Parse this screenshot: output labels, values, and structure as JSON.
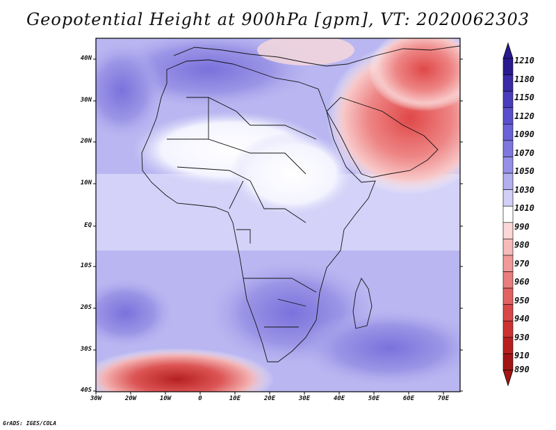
{
  "title": "Geopotential Height at 900hPa [gpm], VT: 2020062303",
  "credit": "GrADS: IGES/COLA",
  "lat_labels": [
    "40N",
    "30N",
    "20N",
    "10N",
    "EQ",
    "10S",
    "20S",
    "30S",
    "40S"
  ],
  "lon_labels": [
    "30W",
    "20W",
    "10W",
    "0",
    "10E",
    "20E",
    "30E",
    "40E",
    "50E",
    "60E",
    "70E"
  ],
  "colorbar": {
    "labels": [
      "1210",
      "1180",
      "1150",
      "1120",
      "1090",
      "1070",
      "1050",
      "1030",
      "1010",
      "990",
      "980",
      "970",
      "960",
      "950",
      "940",
      "930",
      "910",
      "890"
    ],
    "colors": [
      "#2a1a8f",
      "#3a2aa6",
      "#4a3dbb",
      "#5a4fcc",
      "#6a62d8",
      "#7e77e0",
      "#9690e8",
      "#b3b0f0",
      "#d2d0f8",
      "#ffffff",
      "#fbd8d8",
      "#f6baba",
      "#f09a9a",
      "#ea7d7d",
      "#e26262",
      "#d94848",
      "#cc3333",
      "#b82020",
      "#a31515"
    ]
  }
}
